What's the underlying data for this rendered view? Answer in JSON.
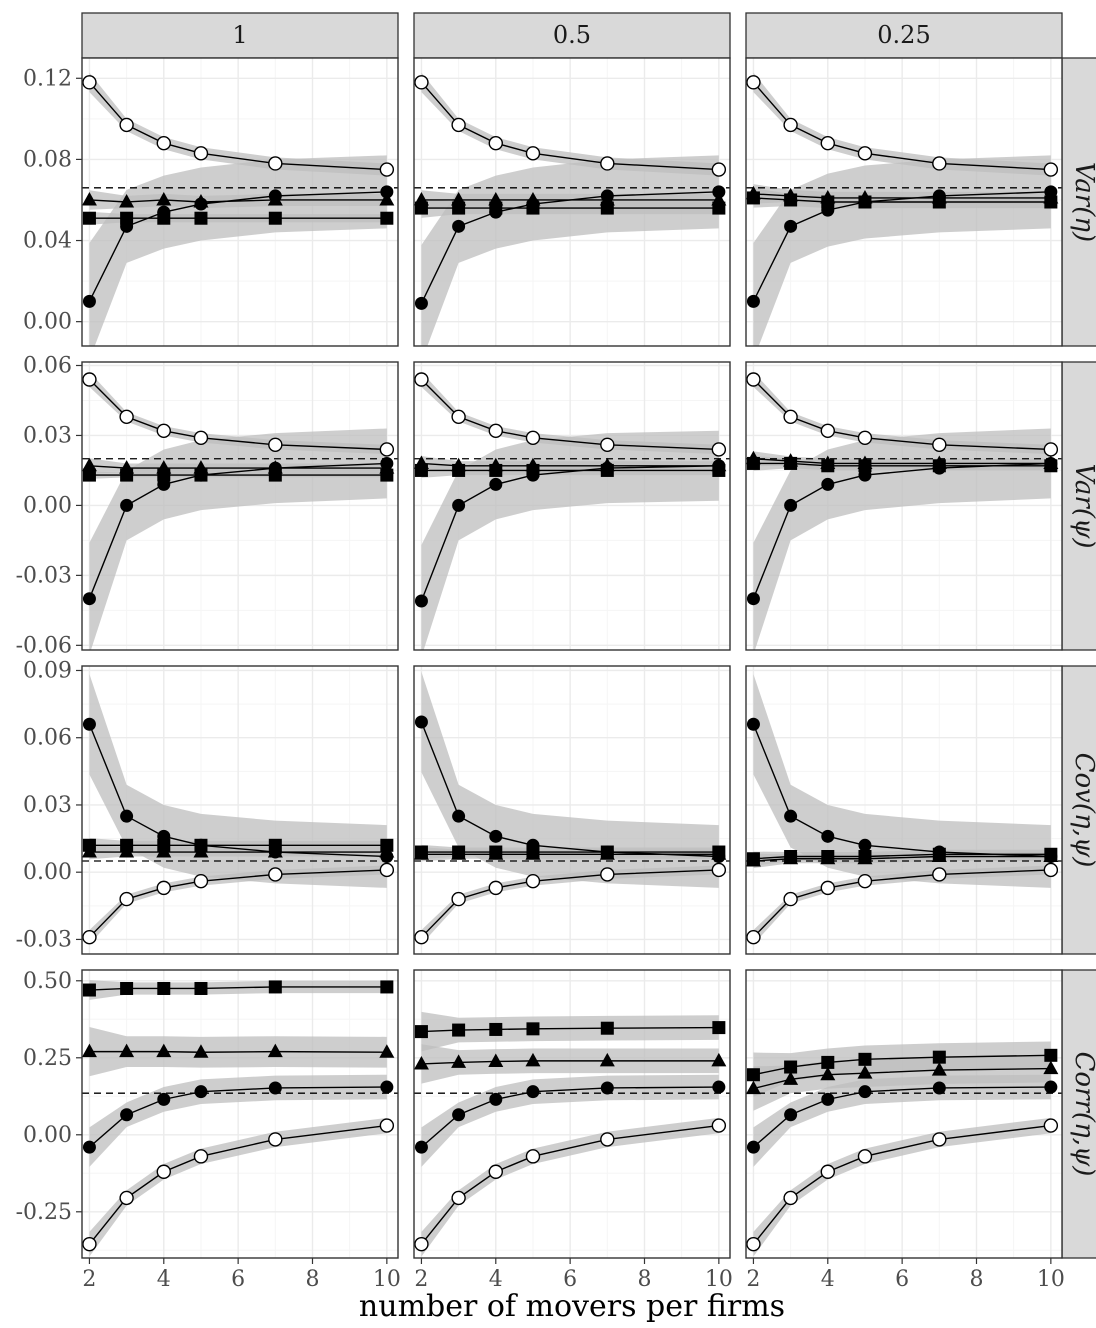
{
  "chart_data": {
    "type": "line",
    "xlabel": "number of movers per firms",
    "x": [
      2,
      3,
      4,
      5,
      7,
      10
    ],
    "x_ticks": [
      2,
      4,
      6,
      8,
      10
    ],
    "x_tick_labels": [
      "2",
      "4",
      "6",
      "8",
      "10"
    ],
    "xlim": [
      1.8,
      10.3
    ],
    "columns": [
      "1",
      "0.5",
      "0.25"
    ],
    "rows": [
      {
        "label": "Var(η)",
        "ylim": [
          -0.012,
          0.13
        ],
        "y_ticks": [
          0.0,
          0.04,
          0.08,
          0.12
        ],
        "y_tick_labels": [
          "0.00",
          "0.04",
          "0.08",
          "0.12"
        ],
        "reference": 0.066,
        "panels": [
          {
            "series": [
              {
                "marker": "open-circle",
                "values": [
                  0.118,
                  0.097,
                  0.088,
                  0.083,
                  0.078,
                  0.075
                ],
                "band": 0.003
              },
              {
                "marker": "filled-circle",
                "values": [
                  0.01,
                  0.047,
                  0.054,
                  0.058,
                  0.062,
                  0.064
                ],
                "band": 0.018
              },
              {
                "marker": "triangle",
                "values": [
                  0.06,
                  0.059,
                  0.06,
                  0.059,
                  0.06,
                  0.06
                ],
                "band": 0.003
              },
              {
                "marker": "square",
                "values": [
                  0.051,
                  0.051,
                  0.051,
                  0.051,
                  0.051,
                  0.051
                ],
                "band": 0.002
              }
            ]
          },
          {
            "series": [
              {
                "marker": "open-circle",
                "values": [
                  0.118,
                  0.097,
                  0.088,
                  0.083,
                  0.078,
                  0.075
                ],
                "band": 0.003
              },
              {
                "marker": "filled-circle",
                "values": [
                  0.009,
                  0.047,
                  0.054,
                  0.058,
                  0.062,
                  0.064
                ],
                "band": 0.018
              },
              {
                "marker": "triangle",
                "values": [
                  0.06,
                  0.06,
                  0.06,
                  0.06,
                  0.06,
                  0.06
                ],
                "band": 0.003
              },
              {
                "marker": "square",
                "values": [
                  0.056,
                  0.056,
                  0.056,
                  0.056,
                  0.056,
                  0.056
                ],
                "band": 0.003
              }
            ]
          },
          {
            "series": [
              {
                "marker": "open-circle",
                "values": [
                  0.118,
                  0.097,
                  0.088,
                  0.083,
                  0.078,
                  0.075
                ],
                "band": 0.003
              },
              {
                "marker": "filled-circle",
                "values": [
                  0.01,
                  0.047,
                  0.055,
                  0.059,
                  0.062,
                  0.064
                ],
                "band": 0.018
              },
              {
                "marker": "triangle",
                "values": [
                  0.063,
                  0.062,
                  0.061,
                  0.061,
                  0.061,
                  0.061
                ],
                "band": 0.003
              },
              {
                "marker": "square",
                "values": [
                  0.061,
                  0.06,
                  0.059,
                  0.059,
                  0.059,
                  0.059
                ],
                "band": 0.003
              }
            ]
          }
        ]
      },
      {
        "label": "Var(ψ)",
        "ylim": [
          -0.062,
          0.0615
        ],
        "y_ticks": [
          -0.06,
          -0.03,
          0.0,
          0.03,
          0.06
        ],
        "y_tick_labels": [
          "-0.06",
          "-0.03",
          "0.00",
          "0.03",
          "0.06"
        ],
        "reference": 0.02,
        "panels": [
          {
            "series": [
              {
                "marker": "open-circle",
                "values": [
                  0.054,
                  0.038,
                  0.032,
                  0.029,
                  0.026,
                  0.024
                ],
                "band": 0.002
              },
              {
                "marker": "filled-circle",
                "values": [
                  -0.04,
                  0.0,
                  0.009,
                  0.013,
                  0.016,
                  0.018
                ],
                "band": 0.015
              },
              {
                "marker": "triangle",
                "values": [
                  0.017,
                  0.016,
                  0.016,
                  0.016,
                  0.016,
                  0.016
                ],
                "band": 0.002
              },
              {
                "marker": "square",
                "values": [
                  0.013,
                  0.013,
                  0.013,
                  0.013,
                  0.013,
                  0.013
                ],
                "band": 0.001
              }
            ]
          },
          {
            "series": [
              {
                "marker": "open-circle",
                "values": [
                  0.054,
                  0.038,
                  0.032,
                  0.029,
                  0.026,
                  0.024
                ],
                "band": 0.002
              },
              {
                "marker": "filled-circle",
                "values": [
                  -0.041,
                  0.0,
                  0.009,
                  0.013,
                  0.016,
                  0.017
                ],
                "band": 0.015
              },
              {
                "marker": "triangle",
                "values": [
                  0.018,
                  0.017,
                  0.017,
                  0.017,
                  0.017,
                  0.017
                ],
                "band": 0.002
              },
              {
                "marker": "square",
                "values": [
                  0.015,
                  0.015,
                  0.015,
                  0.015,
                  0.015,
                  0.015
                ],
                "band": 0.002
              }
            ]
          },
          {
            "series": [
              {
                "marker": "open-circle",
                "values": [
                  0.054,
                  0.038,
                  0.032,
                  0.029,
                  0.026,
                  0.024
                ],
                "band": 0.002
              },
              {
                "marker": "filled-circle",
                "values": [
                  -0.04,
                  0.0,
                  0.009,
                  0.013,
                  0.016,
                  0.018
                ],
                "band": 0.015
              },
              {
                "marker": "triangle",
                "values": [
                  0.02,
                  0.019,
                  0.018,
                  0.018,
                  0.018,
                  0.018
                ],
                "band": 0.002
              },
              {
                "marker": "square",
                "values": [
                  0.018,
                  0.018,
                  0.017,
                  0.017,
                  0.017,
                  0.017
                ],
                "band": 0.002
              }
            ]
          }
        ]
      },
      {
        "label": "Cov(η,ψ)",
        "ylim": [
          -0.0365,
          0.092
        ],
        "y_ticks": [
          -0.03,
          0.0,
          0.03,
          0.06,
          0.09
        ],
        "y_tick_labels": [
          "-0.03",
          "0.00",
          "0.03",
          "0.06",
          "0.09"
        ],
        "reference": 0.005,
        "panels": [
          {
            "series": [
              {
                "marker": "filled-circle",
                "values": [
                  0.066,
                  0.025,
                  0.016,
                  0.012,
                  0.009,
                  0.007
                ],
                "band": 0.014
              },
              {
                "marker": "open-circle",
                "values": [
                  -0.029,
                  -0.012,
                  -0.007,
                  -0.004,
                  -0.001,
                  0.001
                ],
                "band": 0.002
              },
              {
                "marker": "triangle",
                "values": [
                  0.009,
                  0.009,
                  0.009,
                  0.009,
                  0.009,
                  0.009
                ],
                "band": 0.002
              },
              {
                "marker": "square",
                "values": [
                  0.012,
                  0.012,
                  0.012,
                  0.012,
                  0.012,
                  0.012
                ],
                "band": 0.002
              }
            ]
          },
          {
            "series": [
              {
                "marker": "filled-circle",
                "values": [
                  0.067,
                  0.025,
                  0.016,
                  0.012,
                  0.009,
                  0.007
                ],
                "band": 0.014
              },
              {
                "marker": "open-circle",
                "values": [
                  -0.029,
                  -0.012,
                  -0.007,
                  -0.004,
                  -0.001,
                  0.001
                ],
                "band": 0.002
              },
              {
                "marker": "triangle",
                "values": [
                  0.008,
                  0.008,
                  0.008,
                  0.008,
                  0.008,
                  0.008
                ],
                "band": 0.002
              },
              {
                "marker": "square",
                "values": [
                  0.009,
                  0.009,
                  0.009,
                  0.009,
                  0.009,
                  0.009
                ],
                "band": 0.002
              }
            ]
          },
          {
            "series": [
              {
                "marker": "filled-circle",
                "values": [
                  0.066,
                  0.025,
                  0.016,
                  0.012,
                  0.009,
                  0.007
                ],
                "band": 0.014
              },
              {
                "marker": "open-circle",
                "values": [
                  -0.029,
                  -0.012,
                  -0.007,
                  -0.004,
                  -0.001,
                  0.001
                ],
                "band": 0.002
              },
              {
                "marker": "triangle",
                "values": [
                  0.005,
                  0.006,
                  0.006,
                  0.006,
                  0.007,
                  0.007
                ],
                "band": 0.002
              },
              {
                "marker": "square",
                "values": [
                  0.006,
                  0.007,
                  0.007,
                  0.007,
                  0.008,
                  0.008
                ],
                "band": 0.002
              }
            ]
          }
        ]
      },
      {
        "label": "Corr(η,ψ)",
        "ylim": [
          -0.4,
          0.535
        ],
        "y_ticks": [
          -0.25,
          0.0,
          0.25,
          0.5
        ],
        "y_tick_labels": [
          "-0.25",
          "0.00",
          "0.25",
          "0.50"
        ],
        "reference": 0.135,
        "panels": [
          {
            "series": [
              {
                "marker": "square",
                "values": [
                  0.47,
                  0.475,
                  0.475,
                  0.475,
                  0.48,
                  0.48
                ],
                "band": 0.02
              },
              {
                "marker": "triangle",
                "values": [
                  0.27,
                  0.27,
                  0.27,
                  0.268,
                  0.27,
                  0.268
                ],
                "band": 0.05
              },
              {
                "marker": "filled-circle",
                "values": [
                  -0.04,
                  0.065,
                  0.115,
                  0.14,
                  0.152,
                  0.155
                ],
                "band": 0.04
              },
              {
                "marker": "open-circle",
                "values": [
                  -0.355,
                  -0.205,
                  -0.12,
                  -0.07,
                  -0.015,
                  0.03
                ],
                "band": 0.025
              }
            ]
          },
          {
            "series": [
              {
                "marker": "square",
                "values": [
                  0.335,
                  0.34,
                  0.342,
                  0.344,
                  0.346,
                  0.348
                ],
                "band": 0.04
              },
              {
                "marker": "triangle",
                "values": [
                  0.23,
                  0.235,
                  0.238,
                  0.24,
                  0.24,
                  0.24
                ],
                "band": 0.04
              },
              {
                "marker": "filled-circle",
                "values": [
                  -0.04,
                  0.065,
                  0.115,
                  0.14,
                  0.152,
                  0.155
                ],
                "band": 0.04
              },
              {
                "marker": "open-circle",
                "values": [
                  -0.355,
                  -0.205,
                  -0.12,
                  -0.07,
                  -0.015,
                  0.03
                ],
                "band": 0.025
              }
            ]
          },
          {
            "series": [
              {
                "marker": "square",
                "values": [
                  0.195,
                  0.22,
                  0.235,
                  0.245,
                  0.252,
                  0.258
                ],
                "band": 0.045
              },
              {
                "marker": "triangle",
                "values": [
                  0.15,
                  0.18,
                  0.195,
                  0.2,
                  0.21,
                  0.215
                ],
                "band": 0.045
              },
              {
                "marker": "filled-circle",
                "values": [
                  -0.04,
                  0.065,
                  0.115,
                  0.14,
                  0.152,
                  0.155
                ],
                "band": 0.04
              },
              {
                "marker": "open-circle",
                "values": [
                  -0.355,
                  -0.205,
                  -0.12,
                  -0.07,
                  -0.015,
                  0.03
                ],
                "band": 0.025
              }
            ]
          }
        ]
      }
    ]
  },
  "colors": {
    "strip_fill": "#d9d9d9",
    "band_fill": "#bdbdbd",
    "grid_major": "#ebebeb",
    "grid_minor": "#f5f5f5",
    "frame": "#333333",
    "line": "#000000"
  }
}
